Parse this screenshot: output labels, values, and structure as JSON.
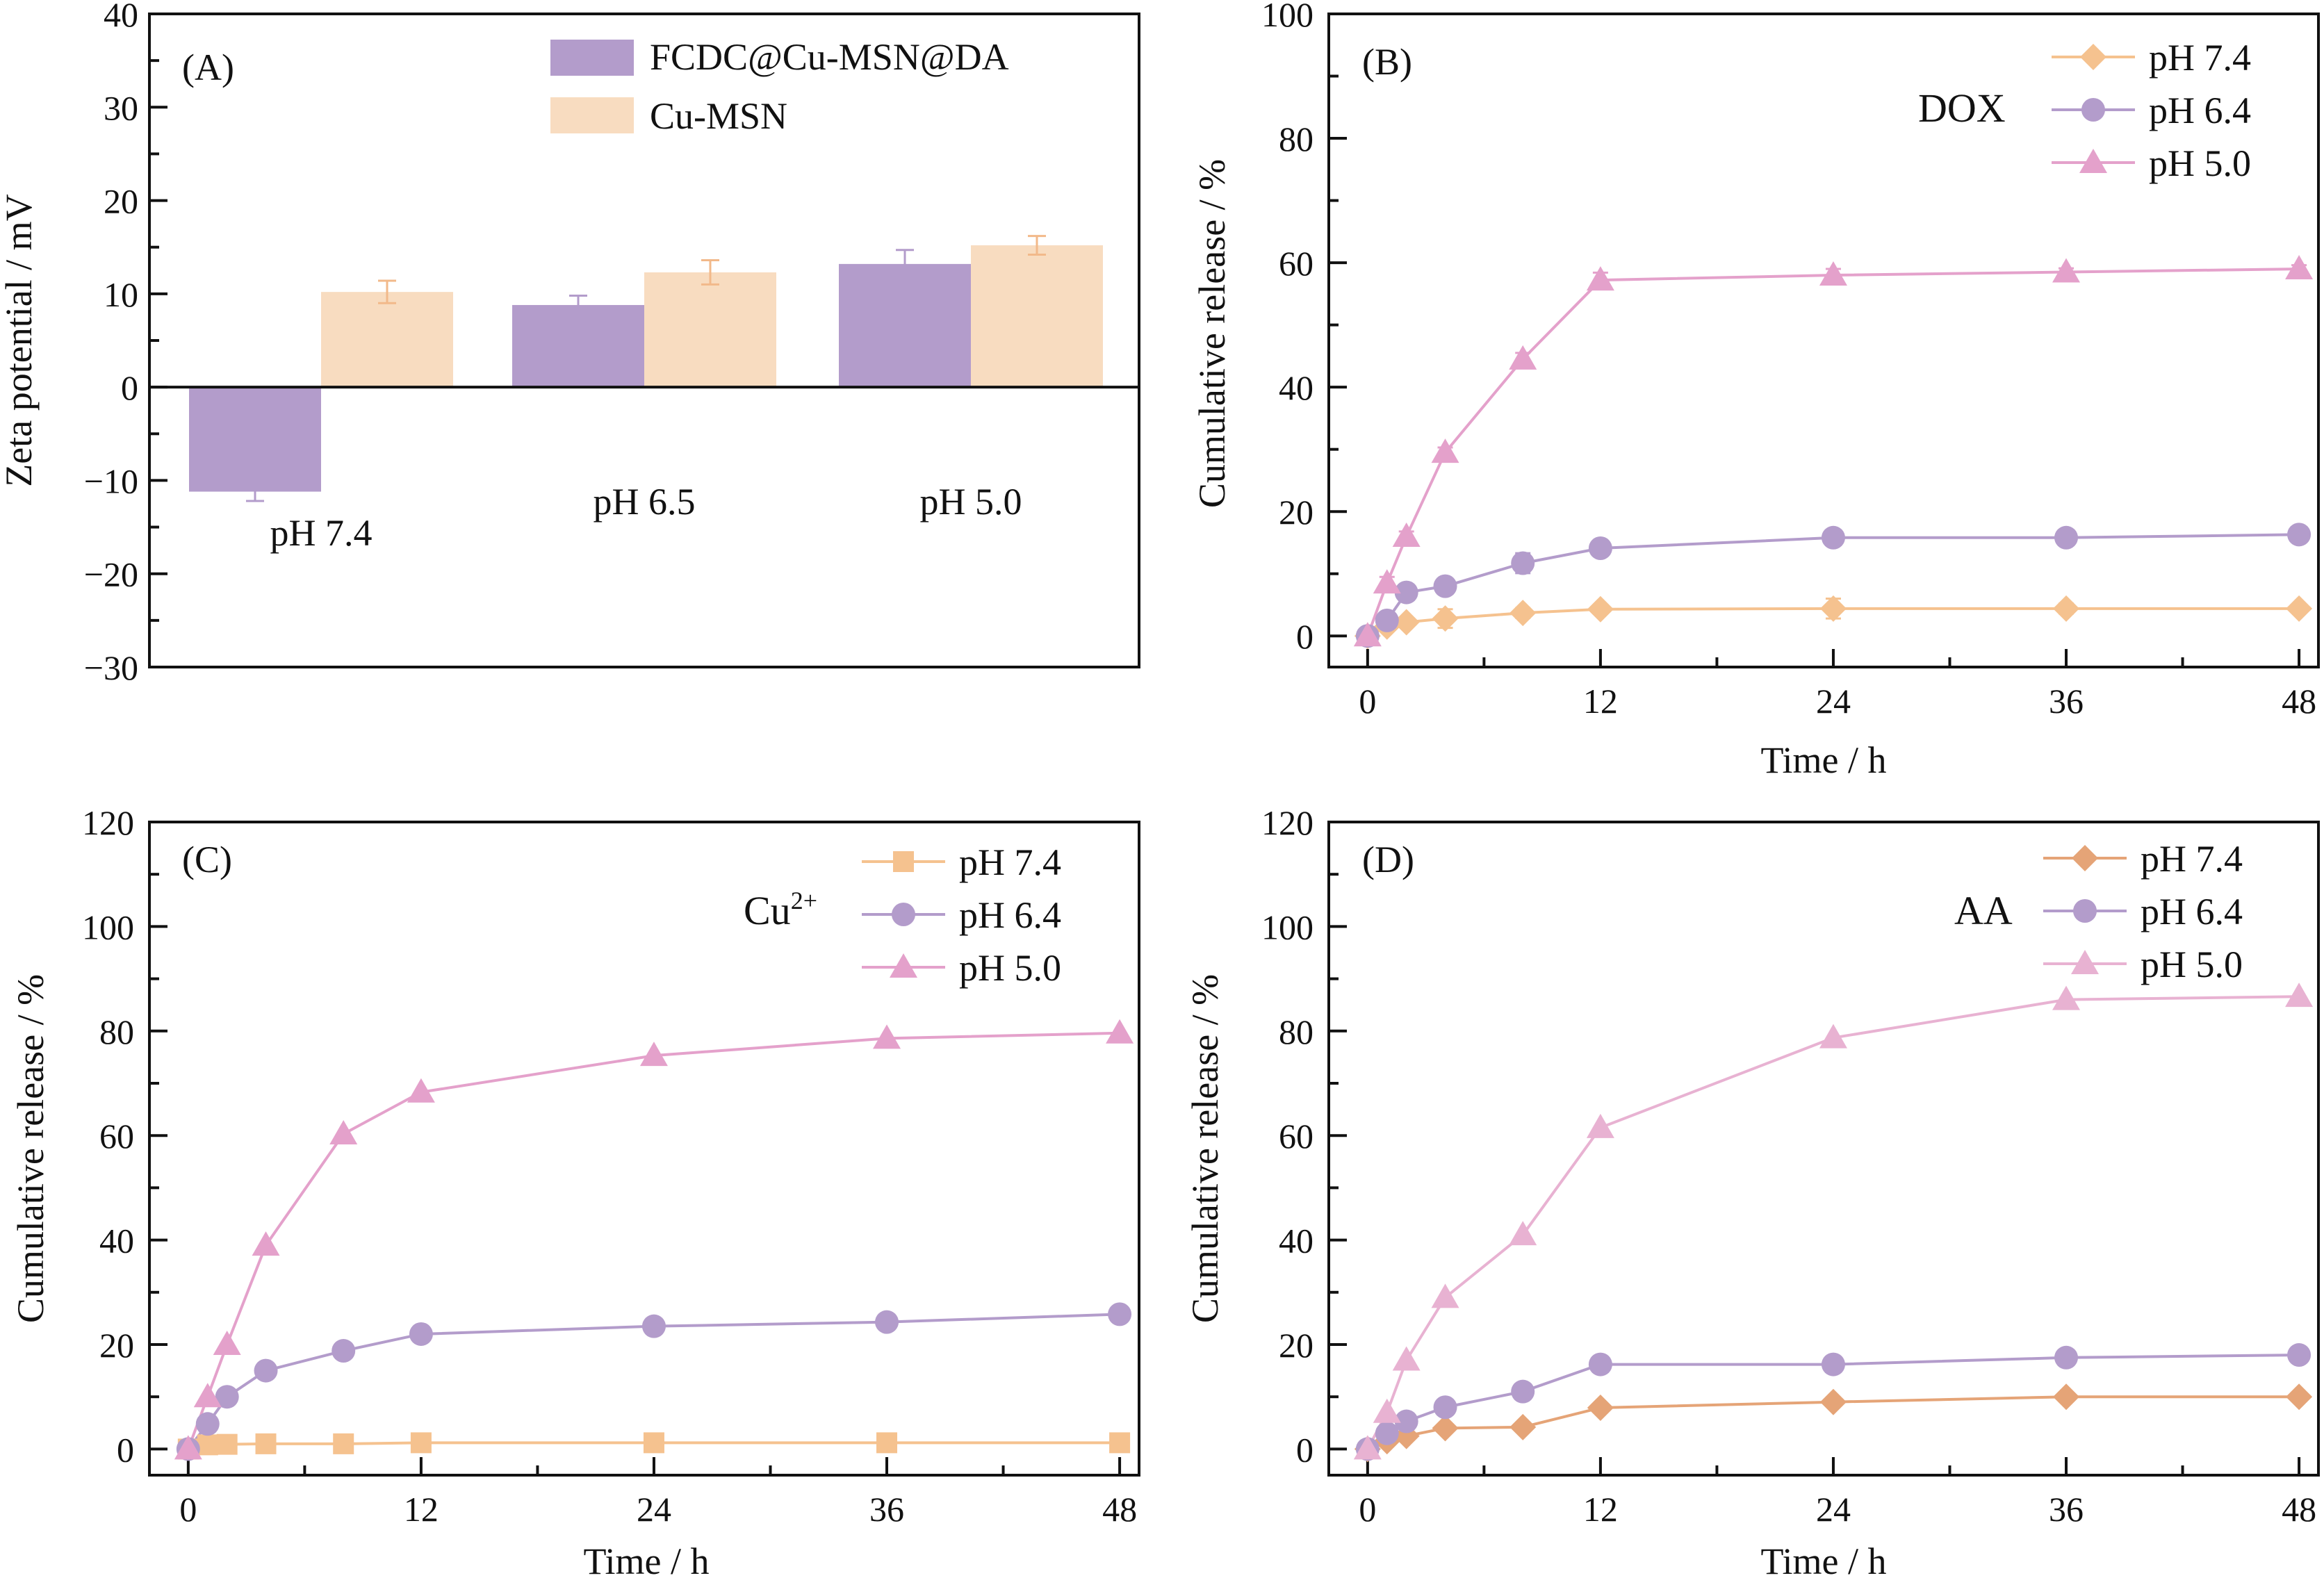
{
  "colors": {
    "purple": "#b39ccb",
    "peach": "#f8dcc0",
    "peach_dark": "#f2b98a",
    "pink": "#e4a1cb",
    "orange_d": "#e5a477",
    "axis": "#111111"
  },
  "chart_data": [
    {
      "panel": "(A)",
      "type": "bar",
      "categories": [
        "pH 7.4",
        "pH 6.5",
        "pH 5.0"
      ],
      "ylabel": "Zeta potential / mV",
      "xlabel": "",
      "ylim": [
        -30,
        40
      ],
      "yticks": [
        40,
        30,
        20,
        10,
        0,
        -10,
        -20,
        -30
      ],
      "ytick_labels": [
        "40",
        "30",
        "20",
        "10",
        "0",
        "−10",
        "−20",
        "−30"
      ],
      "legend_position": "top-right",
      "grid": false,
      "series": [
        {
          "name": "FCDC@Cu-MSN@DA",
          "values": [
            -11.2,
            8.8,
            13.2
          ],
          "errors": [
            1.0,
            1.0,
            1.5
          ],
          "color": "#b39ccb"
        },
        {
          "name": "Cu-MSN",
          "values": [
            10.2,
            12.3,
            15.2
          ],
          "errors": [
            1.2,
            1.3,
            1.0
          ],
          "color": "#f8dcc0"
        }
      ]
    },
    {
      "panel": "(B)",
      "type": "line",
      "annotation": "DOX",
      "xlabel": "Time / h",
      "ylabel": "Cumulative release / %",
      "xlim": [
        -2,
        49
      ],
      "ylim": [
        -5,
        100
      ],
      "xticks": [
        0,
        12,
        24,
        36,
        48
      ],
      "yticks": [
        0,
        20,
        40,
        60,
        80,
        100
      ],
      "legend_position": "top-right",
      "grid": false,
      "x": [
        0,
        1,
        2,
        4,
        8,
        12,
        24,
        36,
        48
      ],
      "series": [
        {
          "name": "pH 7.4",
          "marker": "diamond",
          "color": "#f5c28f",
          "values": [
            0,
            1.5,
            2.2,
            2.8,
            3.7,
            4.3,
            4.4,
            4.4,
            4.4
          ],
          "errors": [
            0,
            0.4,
            0.5,
            1.5,
            0.8,
            0.6,
            1.6,
            0.8,
            0.6
          ]
        },
        {
          "name": "pH 6.4",
          "marker": "circle",
          "color": "#b39ccb",
          "values": [
            0,
            2.5,
            7.0,
            8.0,
            11.7,
            14.1,
            15.8,
            15.8,
            16.3
          ],
          "errors": [
            0,
            0.6,
            1.0,
            0.6,
            1.6,
            1.0,
            0.6,
            1.0,
            0.8
          ]
        },
        {
          "name": "pH 5.0",
          "marker": "triangle",
          "color": "#e4a1cb",
          "values": [
            0,
            8.5,
            16.0,
            29.5,
            44.5,
            57.2,
            58.0,
            58.5,
            59.0
          ],
          "errors": [
            0,
            1.0,
            0.8,
            0.8,
            1.0,
            1.2,
            1.0,
            0.6,
            0.6
          ]
        }
      ]
    },
    {
      "panel": "(C)",
      "type": "line",
      "annotation_base": "Cu",
      "annotation_sup": "2+",
      "xlabel": "Time / h",
      "ylabel": "Cumulative release / %",
      "xlim": [
        -2,
        49
      ],
      "ylim": [
        -5,
        120
      ],
      "xticks": [
        0,
        12,
        24,
        36,
        48
      ],
      "yticks": [
        0,
        20,
        40,
        60,
        80,
        100,
        120
      ],
      "legend_position": "top-right",
      "grid": false,
      "x": [
        0,
        1,
        2,
        4,
        8,
        12,
        24,
        36,
        48
      ],
      "series": [
        {
          "name": "pH 7.4",
          "marker": "square",
          "color": "#f5c28f",
          "values": [
            0,
            0.8,
            0.9,
            1.0,
            1.0,
            1.2,
            1.2,
            1.2,
            1.2
          ]
        },
        {
          "name": "pH 6.4",
          "marker": "circle",
          "color": "#b39ccb",
          "values": [
            0,
            4.8,
            10.0,
            15.0,
            18.8,
            22.0,
            23.5,
            24.3,
            25.8
          ]
        },
        {
          "name": "pH 5.0",
          "marker": "triangle",
          "color": "#e4a1cb",
          "values": [
            0,
            10.0,
            20.0,
            39.0,
            60.3,
            68.3,
            75.3,
            78.6,
            79.6
          ]
        }
      ]
    },
    {
      "panel": "(D)",
      "type": "line",
      "annotation": "AA",
      "xlabel": "Time / h",
      "ylabel": "Cumulative release / %",
      "xlim": [
        -2,
        49
      ],
      "ylim": [
        -5,
        120
      ],
      "xticks": [
        0,
        12,
        24,
        36,
        48
      ],
      "yticks": [
        0,
        20,
        40,
        60,
        80,
        100,
        120
      ],
      "legend_position": "top-right",
      "grid": false,
      "x": [
        0,
        1,
        2,
        4,
        8,
        12,
        24,
        36,
        48
      ],
      "series": [
        {
          "name": "pH 7.4",
          "marker": "diamond",
          "color": "#e5a477",
          "values": [
            0,
            1.5,
            2.5,
            4.0,
            4.2,
            7.9,
            9.0,
            10.0,
            10.0
          ]
        },
        {
          "name": "pH 6.4",
          "marker": "circle",
          "color": "#b39ccb",
          "values": [
            0,
            3.0,
            5.3,
            8.0,
            11.0,
            16.2,
            16.2,
            17.5,
            18.0
          ]
        },
        {
          "name": "pH 5.0",
          "marker": "triangle",
          "color": "#e8b2d2",
          "values": [
            0,
            7.0,
            17.0,
            29.0,
            41.0,
            61.5,
            78.7,
            86.0,
            86.6
          ]
        }
      ]
    }
  ]
}
